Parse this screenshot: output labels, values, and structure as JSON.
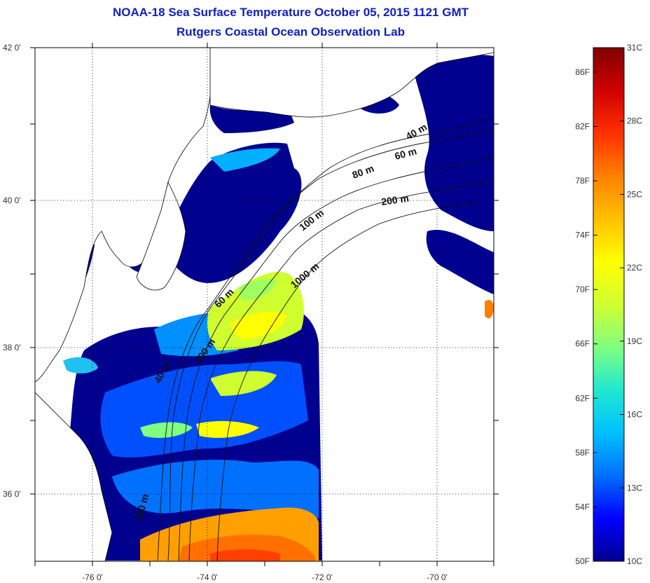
{
  "title": "NOAA-18 Sea Surface Temperature October 05, 2015 1121 GMT",
  "subtitle": "Rutgers Coastal Ocean Observation Lab",
  "map": {
    "lat_labels": [
      "42 0'",
      "40 0'",
      "38 0'",
      "36 0'"
    ],
    "lon_labels": [
      "-76 0'",
      "-74 0'",
      "-72 0'",
      "-70 0'"
    ],
    "lat_range": [
      35,
      42
    ],
    "lon_range": [
      -77,
      -69
    ],
    "depth_contours": [
      "40 m",
      "60 m",
      "80 m",
      "100 m",
      "200 m",
      "200 m",
      "1000 m",
      "40 m",
      "200 m",
      "60 m"
    ]
  },
  "colorbar": {
    "fahrenheit_labels": [
      "86F",
      "82F",
      "78F",
      "74F",
      "70F",
      "66F",
      "62F",
      "58F",
      "54F",
      "50F"
    ],
    "celsius_labels": [
      "31C",
      "28C",
      "25C",
      "22C",
      "19C",
      "16C",
      "13C",
      "10C"
    ],
    "range_c": [
      10,
      31
    ],
    "colors": [
      "#00008f",
      "#0000ff",
      "#0070ff",
      "#00c0ff",
      "#20e8d0",
      "#80ff80",
      "#d0ff30",
      "#ffff00",
      "#ffc000",
      "#ff8000",
      "#ff3000",
      "#d00000",
      "#800000"
    ]
  },
  "colors": {
    "title": "#1020c0",
    "land": "#ffffff",
    "cold_water": "#00008f",
    "grid": "#000000"
  }
}
